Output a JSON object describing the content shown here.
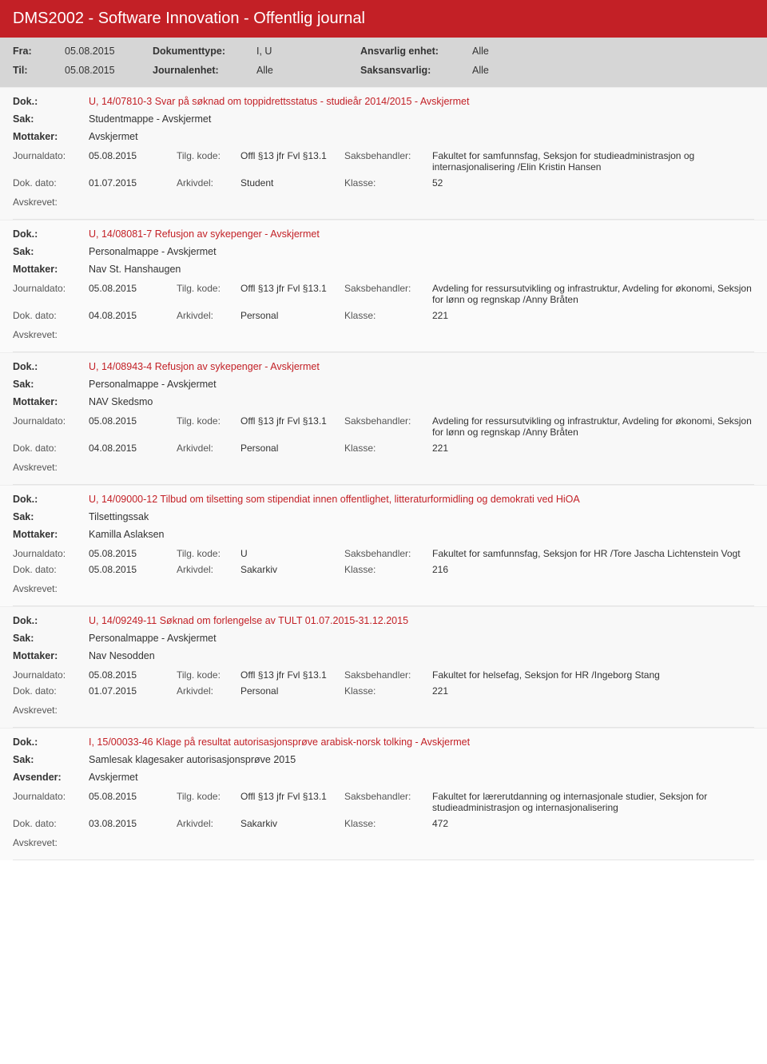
{
  "header": {
    "title": "DMS2002 - Software Innovation - Offentlig journal"
  },
  "filter": {
    "fra_lbl": "Fra:",
    "fra_val": "05.08.2015",
    "til_lbl": "Til:",
    "til_val": "05.08.2015",
    "doktype_lbl": "Dokumenttype:",
    "doktype_val": "I, U",
    "journalenhet_lbl": "Journalenhet:",
    "journalenhet_val": "Alle",
    "ansvarlig_lbl": "Ansvarlig enhet:",
    "ansvarlig_val": "Alle",
    "saksansvarlig_lbl": "Saksansvarlig:",
    "saksansvarlig_val": "Alle"
  },
  "labels": {
    "dok": "Dok.:",
    "sak": "Sak:",
    "mottaker": "Mottaker:",
    "avsender": "Avsender:",
    "journaldato": "Journaldato:",
    "tilgkode": "Tilg. kode:",
    "saksbehandler": "Saksbehandler:",
    "dokdato": "Dok. dato:",
    "arkivdel": "Arkivdel:",
    "klasse": "Klasse:",
    "avskrevet": "Avskrevet:"
  },
  "entries": [
    {
      "dok": "U, 14/07810-3 Svar på søknad om toppidrettsstatus - studieår 2014/2015 - Avskjermet",
      "sak": "Studentmappe - Avskjermet",
      "party_lbl": "Mottaker:",
      "party_val": "Avskjermet",
      "journaldato": "05.08.2015",
      "tilgkode": "Offl §13 jfr Fvl §13.1",
      "saksbehandler": "Fakultet for samfunnsfag, Seksjon for studieadministrasjon og internasjonalisering /Elin Kristin Hansen",
      "dokdato": "01.07.2015",
      "arkivdel": "Student",
      "klasse": "52"
    },
    {
      "dok": "U, 14/08081-7 Refusjon av sykepenger - Avskjermet",
      "sak": "Personalmappe - Avskjermet",
      "party_lbl": "Mottaker:",
      "party_val": "Nav St. Hanshaugen",
      "journaldato": "05.08.2015",
      "tilgkode": "Offl §13 jfr Fvl §13.1",
      "saksbehandler": "Avdeling for ressursutvikling og infrastruktur, Avdeling for økonomi, Seksjon for lønn og regnskap /Anny Bråten",
      "dokdato": "04.08.2015",
      "arkivdel": "Personal",
      "klasse": "221"
    },
    {
      "dok": "U, 14/08943-4 Refusjon av sykepenger - Avskjermet",
      "sak": "Personalmappe - Avskjermet",
      "party_lbl": "Mottaker:",
      "party_val": "NAV Skedsmo",
      "journaldato": "05.08.2015",
      "tilgkode": "Offl §13 jfr Fvl §13.1",
      "saksbehandler": "Avdeling for ressursutvikling og infrastruktur, Avdeling for økonomi, Seksjon for lønn og regnskap /Anny Bråten",
      "dokdato": "04.08.2015",
      "arkivdel": "Personal",
      "klasse": "221"
    },
    {
      "dok": "U, 14/09000-12 Tilbud om tilsetting som stipendiat innen offentlighet, litteraturformidling og demokrati ved HiOA",
      "sak": "Tilsettingssak",
      "party_lbl": "Mottaker:",
      "party_val": "Kamilla Aslaksen",
      "journaldato": "05.08.2015",
      "tilgkode": "U",
      "saksbehandler": "Fakultet for samfunnsfag, Seksjon for HR /Tore Jascha Lichtenstein Vogt",
      "dokdato": "05.08.2015",
      "arkivdel": "Sakarkiv",
      "klasse": "216"
    },
    {
      "dok": "U, 14/09249-11 Søknad om forlengelse av TULT 01.07.2015-31.12.2015",
      "sak": "Personalmappe - Avskjermet",
      "party_lbl": "Mottaker:",
      "party_val": "Nav Nesodden",
      "journaldato": "05.08.2015",
      "tilgkode": "Offl §13 jfr Fvl §13.1",
      "saksbehandler": "Fakultet for helsefag, Seksjon for HR /Ingeborg Stang",
      "dokdato": "01.07.2015",
      "arkivdel": "Personal",
      "klasse": "221"
    },
    {
      "dok": "I, 15/00033-46 Klage på resultat autorisasjonsprøve arabisk-norsk tolking - Avskjermet",
      "sak": "Samlesak klagesaker autorisasjonsprøve 2015",
      "party_lbl": "Avsender:",
      "party_val": "Avskjermet",
      "journaldato": "05.08.2015",
      "tilgkode": "Offl §13 jfr Fvl §13.1",
      "saksbehandler": "Fakultet for lærerutdanning og internasjonale studier, Seksjon for studieadministrasjon og internasjonalisering",
      "dokdato": "03.08.2015",
      "arkivdel": "Sakarkiv",
      "klasse": "472"
    }
  ]
}
